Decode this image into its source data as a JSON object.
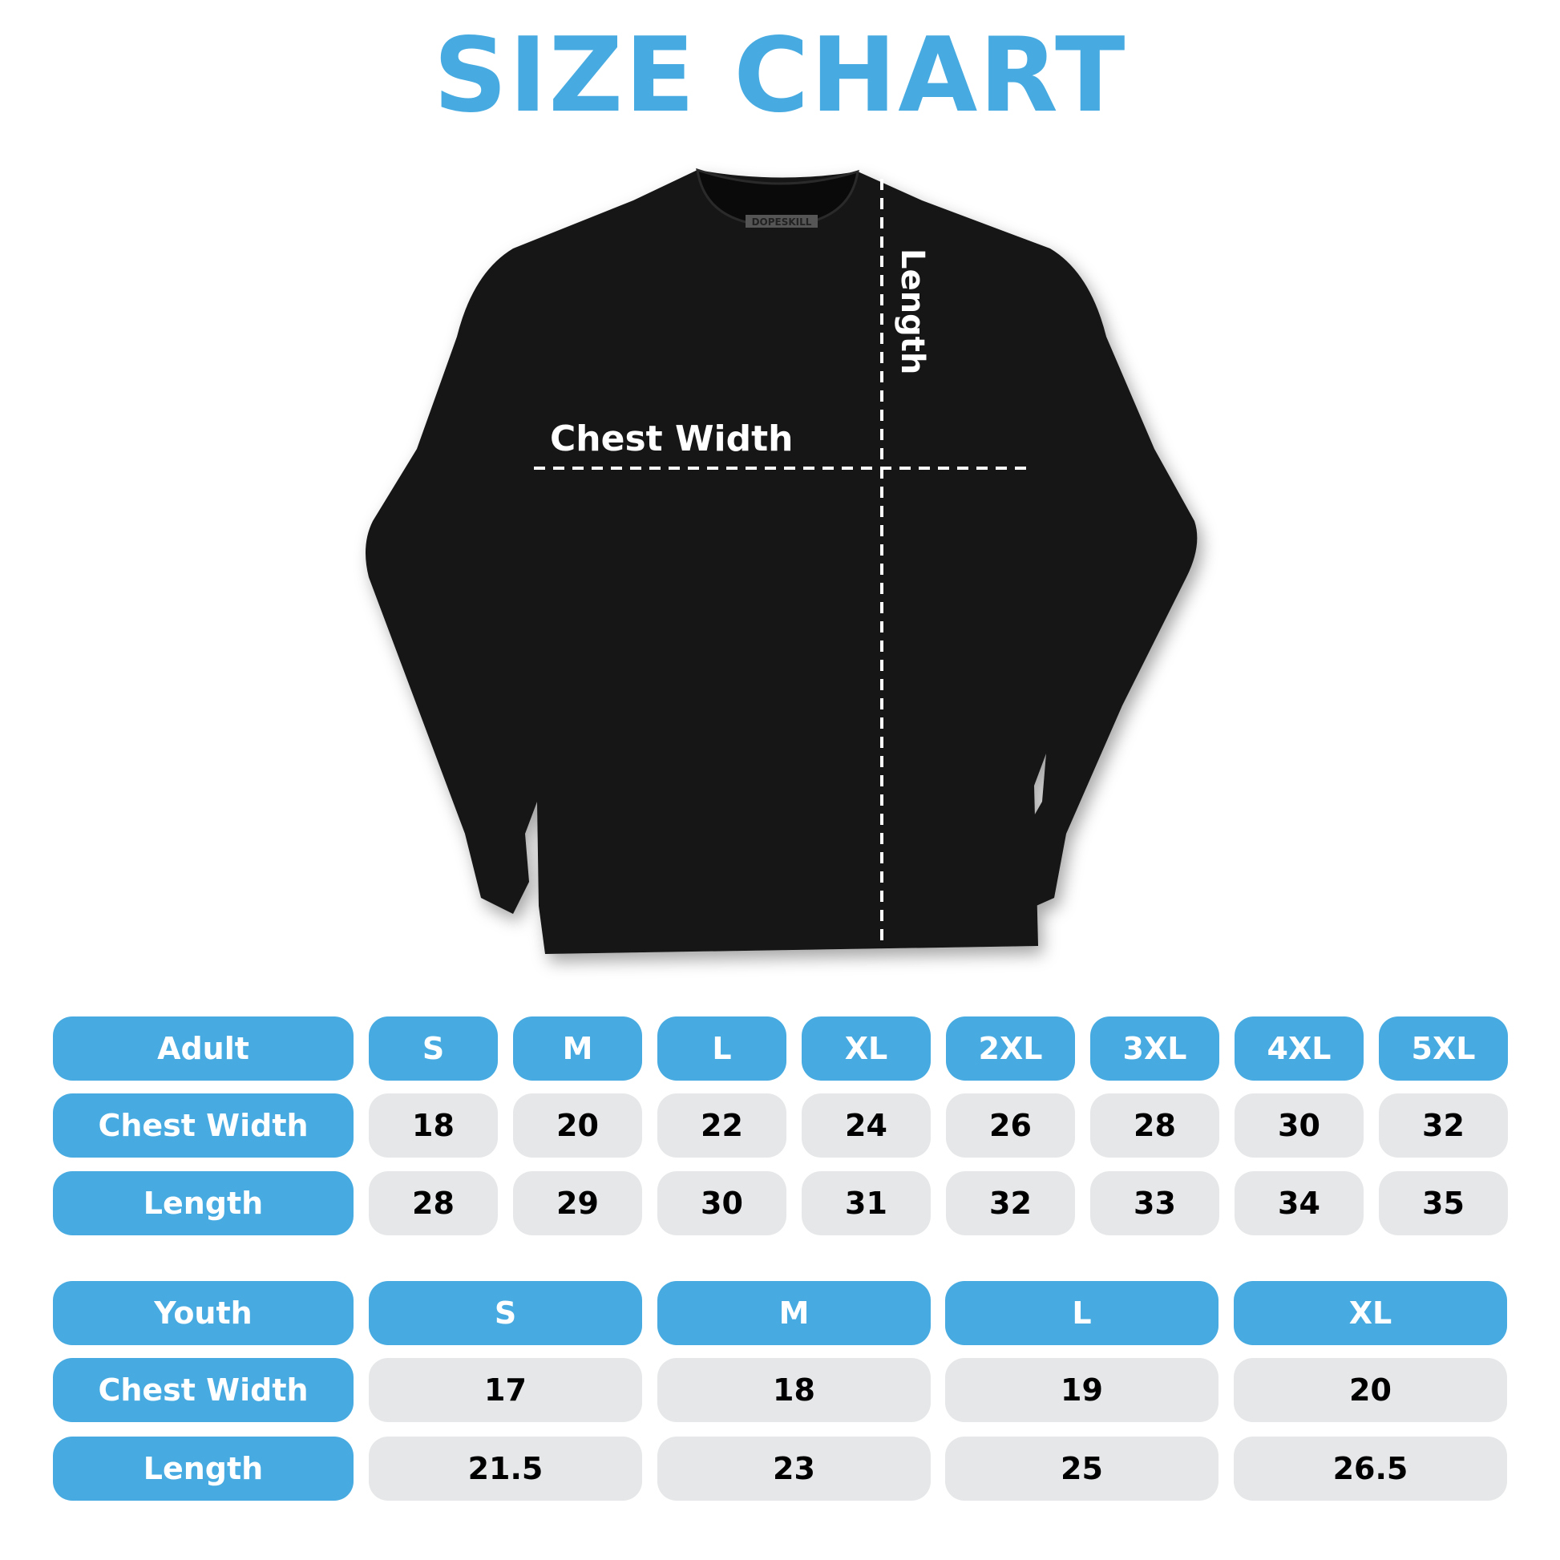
{
  "title": "SIZE CHART",
  "brand_tag": "DOPESKILL",
  "colors": {
    "accent": "#47abe1",
    "cell_bg": "#e6e7e8",
    "shirt": "#121212"
  },
  "diagram": {
    "chest_label": "Chest Width",
    "length_label": "Length"
  },
  "adult": {
    "header": "Adult",
    "sizes": [
      "S",
      "M",
      "L",
      "XL",
      "2XL",
      "3XL",
      "4XL",
      "5XL"
    ],
    "rows": [
      {
        "label": "Chest Width",
        "values": [
          "18",
          "20",
          "22",
          "24",
          "26",
          "28",
          "30",
          "32"
        ]
      },
      {
        "label": "Length",
        "values": [
          "28",
          "29",
          "30",
          "31",
          "32",
          "33",
          "34",
          "35"
        ]
      }
    ]
  },
  "youth": {
    "header": "Youth",
    "sizes": [
      "S",
      "M",
      "L",
      "XL"
    ],
    "rows": [
      {
        "label": "Chest Width",
        "values": [
          "17",
          "18",
          "19",
          "20"
        ]
      },
      {
        "label": "Length",
        "values": [
          "21.5",
          "23",
          "25",
          "26.5"
        ]
      }
    ]
  }
}
